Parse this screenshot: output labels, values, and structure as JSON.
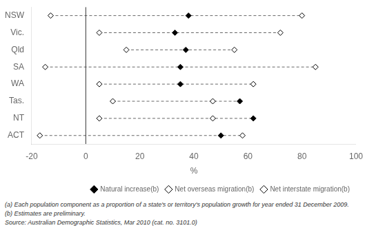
{
  "chart_data": {
    "type": "dot",
    "orientation": "horizontal",
    "categories": [
      "NSW",
      "Vic.",
      "Qld",
      "SA",
      "WA",
      "Tas.",
      "NT",
      "ACT"
    ],
    "series": [
      {
        "name": "Natural increase(b)",
        "color": "#000000",
        "marker": "diamond",
        "values": [
          38,
          33,
          37,
          35,
          35,
          57,
          62,
          50
        ]
      },
      {
        "name": "Net overseas migration(b)",
        "color": "#000000",
        "marker": "open_diamond",
        "values": [
          -13,
          5,
          15,
          -15,
          5,
          10,
          5,
          -17
        ]
      },
      {
        "name": "Net interstate migration(b)",
        "color": "#000000",
        "marker": "open_diamond",
        "values": [
          80,
          72,
          55,
          85,
          62,
          47,
          47,
          58
        ]
      }
    ],
    "xlabel": "%",
    "xlim": [
      -20,
      100
    ],
    "xticks": [
      -20,
      0,
      20,
      40,
      60,
      80,
      100
    ],
    "vline": 0,
    "grid": false,
    "legend": "lower right",
    "annotations": [
      "(a) Each population component as a proportion of a state's or territory's population growth for year ended 31 December 2009.",
      "(b) Estimates are preliminary.",
      "Source: Australian Demographic Statistics, Mar 2010 (cat. no. 3101.0)"
    ]
  }
}
